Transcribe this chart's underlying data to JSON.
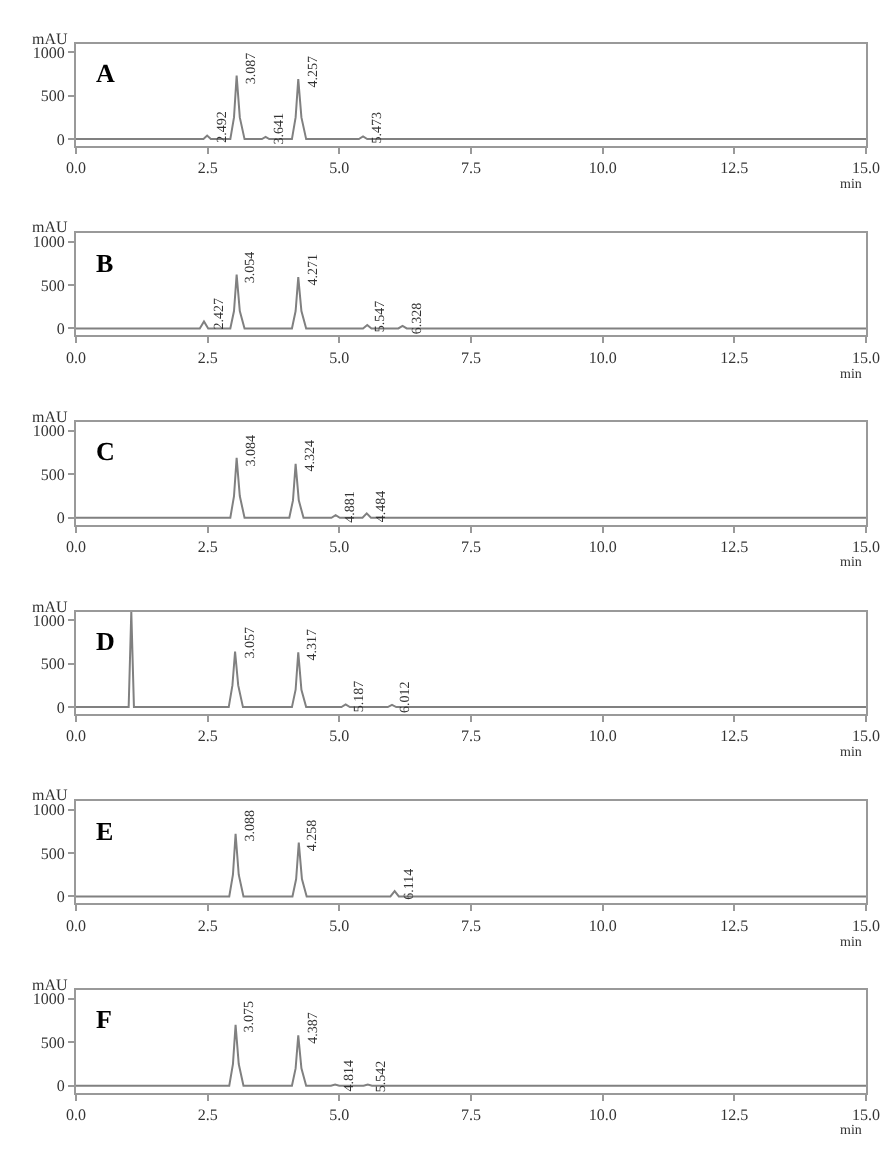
{
  "chart_data": [
    {
      "type": "line",
      "title": "A",
      "xlabel": "min",
      "ylabel": "mAU",
      "color": "#808080",
      "xlim": [
        0,
        15
      ],
      "ylim": [
        -80,
        1100
      ],
      "xticks": [
        {
          "value": 0,
          "label": "0.0"
        },
        {
          "value": 2.5,
          "label": "2.5"
        },
        {
          "value": 5,
          "label": "5.0"
        },
        {
          "value": 7.5,
          "label": "7.5"
        },
        {
          "value": 10,
          "label": "10.0"
        },
        {
          "value": 12.5,
          "label": "12.5"
        },
        {
          "value": 15,
          "label": "15.0"
        }
      ],
      "yticks": [
        0,
        500,
        1000
      ],
      "x": [
        0,
        2.42,
        2.49,
        2.56,
        2.93,
        3.0,
        3.05,
        3.11,
        3.2,
        3.53,
        3.6,
        3.67,
        4.1,
        4.17,
        4.22,
        4.28,
        4.37,
        5.37,
        5.45,
        5.53,
        15
      ],
      "values": [
        0,
        0,
        40,
        0,
        0,
        250,
        730,
        250,
        0,
        0,
        25,
        0,
        0,
        250,
        690,
        250,
        0,
        0,
        30,
        0,
        0
      ],
      "annotations": [
        {
          "text": "2.492",
          "x": 2.49,
          "y": 40
        },
        {
          "text": "3.087",
          "x": 3.05,
          "y": 730
        },
        {
          "text": "3.641",
          "x": 3.6,
          "y": 25
        },
        {
          "text": "4.257",
          "x": 4.22,
          "y": 690
        },
        {
          "text": "5.473",
          "x": 5.45,
          "y": 30
        }
      ]
    },
    {
      "type": "line",
      "title": "B",
      "xlabel": "min",
      "ylabel": "mAU",
      "color": "#808080",
      "xlim": [
        0,
        15
      ],
      "ylim": [
        -80,
        1100
      ],
      "xticks": [
        {
          "value": 0,
          "label": "0.0"
        },
        {
          "value": 2.5,
          "label": "2.5"
        },
        {
          "value": 5,
          "label": "5.0"
        },
        {
          "value": 7.5,
          "label": "7.5"
        },
        {
          "value": 10,
          "label": "10.0"
        },
        {
          "value": 12.5,
          "label": "12.5"
        },
        {
          "value": 15,
          "label": "15.0"
        }
      ],
      "yticks": [
        0,
        500,
        1000
      ],
      "x": [
        0,
        2.35,
        2.43,
        2.51,
        2.93,
        3.0,
        3.05,
        3.11,
        3.2,
        4.1,
        4.17,
        4.22,
        4.28,
        4.37,
        5.45,
        5.53,
        5.61,
        6.12,
        6.2,
        6.28,
        15
      ],
      "values": [
        0,
        0,
        80,
        0,
        0,
        200,
        620,
        200,
        0,
        0,
        200,
        590,
        200,
        0,
        0,
        40,
        0,
        0,
        30,
        0,
        0
      ],
      "annotations": [
        {
          "text": "2.427",
          "x": 2.43,
          "y": 80
        },
        {
          "text": "3.054",
          "x": 3.05,
          "y": 620
        },
        {
          "text": "4.271",
          "x": 4.22,
          "y": 590
        },
        {
          "text": "5.547",
          "x": 5.53,
          "y": 40
        },
        {
          "text": "6.328",
          "x": 6.2,
          "y": 30
        }
      ]
    },
    {
      "type": "line",
      "title": "C",
      "xlabel": "min",
      "ylabel": "mAU",
      "color": "#808080",
      "xlim": [
        0,
        15
      ],
      "ylim": [
        -80,
        1100
      ],
      "xticks": [
        {
          "value": 0,
          "label": "0.0"
        },
        {
          "value": 2.5,
          "label": "2.5"
        },
        {
          "value": 5,
          "label": "5.0"
        },
        {
          "value": 7.5,
          "label": "7.5"
        },
        {
          "value": 10,
          "label": "10.0"
        },
        {
          "value": 12.5,
          "label": "12.5"
        },
        {
          "value": 15,
          "label": "15.0"
        }
      ],
      "yticks": [
        0,
        500,
        1000
      ],
      "x": [
        0,
        2.93,
        3.0,
        3.05,
        3.11,
        3.2,
        4.05,
        4.12,
        4.17,
        4.23,
        4.32,
        4.85,
        4.93,
        5.01,
        5.44,
        5.52,
        5.6,
        15
      ],
      "values": [
        0,
        0,
        250,
        690,
        250,
        0,
        0,
        200,
        620,
        200,
        0,
        0,
        30,
        0,
        0,
        50,
        0,
        0
      ],
      "annotations": [
        {
          "text": "3.084",
          "x": 3.05,
          "y": 690
        },
        {
          "text": "4.324",
          "x": 4.17,
          "y": 620
        },
        {
          "text": "4.881",
          "x": 4.93,
          "y": 30
        },
        {
          "text": "4.484",
          "x": 5.52,
          "y": 50
        }
      ]
    },
    {
      "type": "line",
      "title": "D",
      "xlabel": "min",
      "ylabel": "mAU",
      "color": "#808080",
      "xlim": [
        0,
        15
      ],
      "ylim": [
        -80,
        1100
      ],
      "xticks": [
        {
          "value": 0,
          "label": "0.0"
        },
        {
          "value": 2.5,
          "label": "2.5"
        },
        {
          "value": 5,
          "label": "5.0"
        },
        {
          "value": 7.5,
          "label": "7.5"
        },
        {
          "value": 10,
          "label": "10.0"
        },
        {
          "value": 12.5,
          "label": "12.5"
        },
        {
          "value": 15,
          "label": "15.0"
        }
      ],
      "yticks": [
        0,
        500,
        1000
      ],
      "x": [
        0,
        1.0,
        1.05,
        1.1,
        2.9,
        2.97,
        3.02,
        3.08,
        3.17,
        4.1,
        4.17,
        4.22,
        4.28,
        4.37,
        5.04,
        5.12,
        5.2,
        5.92,
        6.0,
        6.08,
        15
      ],
      "values": [
        0,
        0,
        1100,
        0,
        0,
        250,
        640,
        250,
        0,
        0,
        200,
        630,
        200,
        0,
        0,
        30,
        0,
        0,
        25,
        0,
        0
      ],
      "annotations": [
        {
          "text": "3.057",
          "x": 3.02,
          "y": 640
        },
        {
          "text": "4.317",
          "x": 4.22,
          "y": 630
        },
        {
          "text": "5.187",
          "x": 5.12,
          "y": 30
        },
        {
          "text": "6.012",
          "x": 6.0,
          "y": 25
        }
      ]
    },
    {
      "type": "line",
      "title": "E",
      "xlabel": "min",
      "ylabel": "mAU",
      "color": "#808080",
      "xlim": [
        0,
        15
      ],
      "ylim": [
        -80,
        1100
      ],
      "xticks": [
        {
          "value": 0,
          "label": "0.0"
        },
        {
          "value": 2.5,
          "label": "2.5"
        },
        {
          "value": 5,
          "label": "5.0"
        },
        {
          "value": 7.5,
          "label": "7.5"
        },
        {
          "value": 10,
          "label": "10.0"
        },
        {
          "value": 12.5,
          "label": "12.5"
        },
        {
          "value": 15,
          "label": "15.0"
        }
      ],
      "yticks": [
        0,
        500,
        1000
      ],
      "x": [
        0,
        2.91,
        2.98,
        3.03,
        3.09,
        3.18,
        4.11,
        4.18,
        4.23,
        4.29,
        4.38,
        5.97,
        6.05,
        6.13,
        15
      ],
      "values": [
        0,
        0,
        250,
        720,
        250,
        0,
        0,
        200,
        620,
        200,
        0,
        0,
        60,
        0,
        0
      ],
      "annotations": [
        {
          "text": "3.088",
          "x": 3.03,
          "y": 720
        },
        {
          "text": "4.258",
          "x": 4.23,
          "y": 620
        },
        {
          "text": "6.114",
          "x": 6.05,
          "y": 60
        }
      ]
    },
    {
      "type": "line",
      "title": "F",
      "xlabel": "min",
      "ylabel": "mAU",
      "color": "#808080",
      "xlim": [
        0,
        15
      ],
      "ylim": [
        -80,
        1100
      ],
      "xticks": [
        {
          "value": 0,
          "label": "0.0"
        },
        {
          "value": 2.5,
          "label": "2.5"
        },
        {
          "value": 5,
          "label": "5.0"
        },
        {
          "value": 7.5,
          "label": "7.5"
        },
        {
          "value": 10,
          "label": "10.0"
        },
        {
          "value": 12.5,
          "label": "12.5"
        },
        {
          "value": 15,
          "label": "15.0"
        }
      ],
      "yticks": [
        0,
        500,
        1000
      ],
      "x": [
        0,
        2.91,
        2.98,
        3.03,
        3.09,
        3.18,
        4.1,
        4.17,
        4.22,
        4.28,
        4.37,
        4.84,
        4.92,
        5.0,
        5.46,
        5.54,
        5.62,
        15
      ],
      "values": [
        0,
        0,
        250,
        700,
        250,
        0,
        0,
        200,
        580,
        200,
        0,
        0,
        15,
        0,
        0,
        15,
        0,
        0
      ],
      "annotations": [
        {
          "text": "3.075",
          "x": 3.03,
          "y": 700
        },
        {
          "text": "4.387",
          "x": 4.22,
          "y": 580
        },
        {
          "text": "4.814",
          "x": 4.92,
          "y": 15
        },
        {
          "text": "5.542",
          "x": 5.54,
          "y": 15
        }
      ]
    }
  ]
}
